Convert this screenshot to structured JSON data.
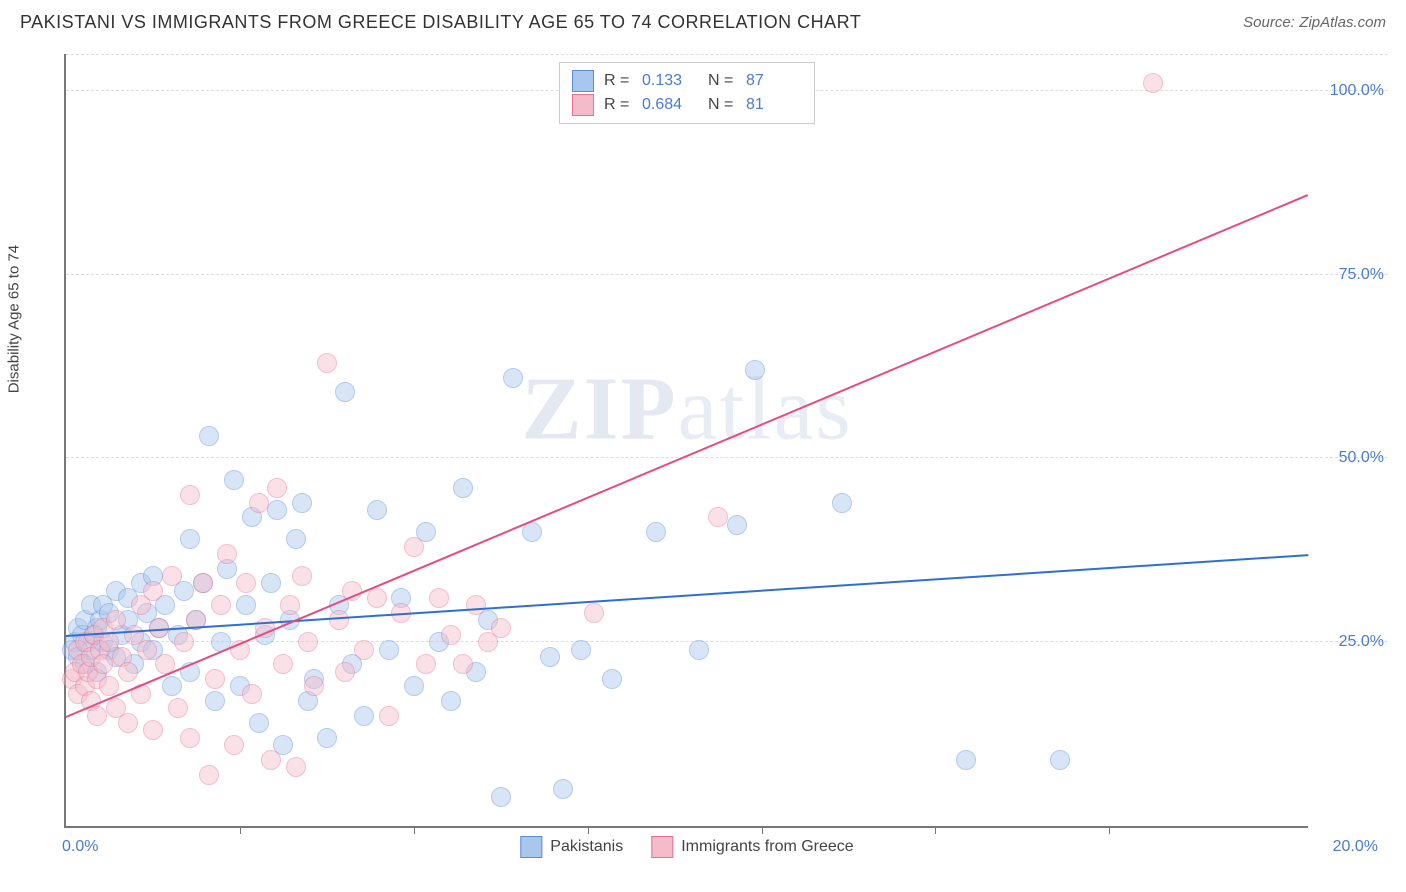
{
  "title": "PAKISTANI VS IMMIGRANTS FROM GREECE DISABILITY AGE 65 TO 74 CORRELATION CHART",
  "source_label": "Source:",
  "source_value": "ZipAtlas.com",
  "y_axis_label": "Disability Age 65 to 74",
  "watermark_a": "ZIP",
  "watermark_b": "atlas",
  "chart": {
    "type": "scatter-with-regression",
    "xlim": [
      0,
      20
    ],
    "ylim": [
      0,
      105
    ],
    "x_ticks": [
      0,
      20
    ],
    "x_tick_labels": [
      "0.0%",
      "20.0%"
    ],
    "x_minor_tick_positions": [
      2.8,
      5.6,
      8.4,
      11.2,
      14.0,
      16.8
    ],
    "y_ticks": [
      25,
      50,
      75,
      100
    ],
    "y_tick_labels": [
      "25.0%",
      "50.0%",
      "75.0%",
      "100.0%"
    ],
    "background_color": "#ffffff",
    "grid_color": "#dddddd",
    "axis_color": "#777777",
    "tick_label_color": "#4a7bd0",
    "marker_radius": 10,
    "marker_opacity": 0.45,
    "series": [
      {
        "name": "Pakistanis",
        "color_fill": "#a9c6ed",
        "color_stroke": "#5b8dd6",
        "legend_label": "Pakistanis",
        "R": "0.133",
        "N": "87",
        "regression": {
          "x1": 0,
          "y1": 26,
          "x2": 20,
          "y2": 37,
          "color": "#2f6fd0",
          "width": 2
        },
        "points": [
          [
            0.1,
            24
          ],
          [
            0.15,
            25
          ],
          [
            0.2,
            27
          ],
          [
            0.2,
            23
          ],
          [
            0.25,
            26
          ],
          [
            0.3,
            28
          ],
          [
            0.3,
            22
          ],
          [
            0.35,
            25
          ],
          [
            0.4,
            30
          ],
          [
            0.4,
            24
          ],
          [
            0.45,
            26
          ],
          [
            0.5,
            27
          ],
          [
            0.5,
            21
          ],
          [
            0.55,
            28
          ],
          [
            0.6,
            25
          ],
          [
            0.6,
            30
          ],
          [
            0.7,
            24
          ],
          [
            0.7,
            29
          ],
          [
            0.8,
            32
          ],
          [
            0.8,
            23
          ],
          [
            0.9,
            26
          ],
          [
            1.0,
            31
          ],
          [
            1.0,
            28
          ],
          [
            1.1,
            22
          ],
          [
            1.2,
            33
          ],
          [
            1.2,
            25
          ],
          [
            1.3,
            29
          ],
          [
            1.4,
            34
          ],
          [
            1.4,
            24
          ],
          [
            1.5,
            27
          ],
          [
            1.6,
            30
          ],
          [
            1.7,
            19
          ],
          [
            1.8,
            26
          ],
          [
            1.9,
            32
          ],
          [
            2.0,
            39
          ],
          [
            2.0,
            21
          ],
          [
            2.1,
            28
          ],
          [
            2.2,
            33
          ],
          [
            2.3,
            53
          ],
          [
            2.4,
            17
          ],
          [
            2.5,
            25
          ],
          [
            2.6,
            35
          ],
          [
            2.7,
            47
          ],
          [
            2.8,
            19
          ],
          [
            2.9,
            30
          ],
          [
            3.0,
            42
          ],
          [
            3.1,
            14
          ],
          [
            3.2,
            26
          ],
          [
            3.3,
            33
          ],
          [
            3.4,
            43
          ],
          [
            3.5,
            11
          ],
          [
            3.6,
            28
          ],
          [
            3.7,
            39
          ],
          [
            3.8,
            44
          ],
          [
            3.9,
            17
          ],
          [
            4.0,
            20
          ],
          [
            4.2,
            12
          ],
          [
            4.4,
            30
          ],
          [
            4.5,
            59
          ],
          [
            4.6,
            22
          ],
          [
            4.8,
            15
          ],
          [
            5.0,
            43
          ],
          [
            5.2,
            24
          ],
          [
            5.4,
            31
          ],
          [
            5.6,
            19
          ],
          [
            5.8,
            40
          ],
          [
            6.0,
            25
          ],
          [
            6.2,
            17
          ],
          [
            6.4,
            46
          ],
          [
            6.6,
            21
          ],
          [
            6.8,
            28
          ],
          [
            7.0,
            4
          ],
          [
            7.2,
            61
          ],
          [
            7.5,
            40
          ],
          [
            7.8,
            23
          ],
          [
            8.0,
            5
          ],
          [
            8.3,
            24
          ],
          [
            8.8,
            20
          ],
          [
            9.5,
            40
          ],
          [
            10.2,
            24
          ],
          [
            10.8,
            41
          ],
          [
            11.1,
            62
          ],
          [
            12.5,
            44
          ],
          [
            14.5,
            9
          ],
          [
            16.0,
            9
          ]
        ]
      },
      {
        "name": "Immigrants from Greece",
        "color_fill": "#f4bccb",
        "color_stroke": "#e77095",
        "legend_label": "Immigrants from Greece",
        "R": "0.684",
        "N": "81",
        "regression": {
          "x1": 0,
          "y1": 15,
          "x2": 20,
          "y2": 86,
          "color": "#e94a7d",
          "width": 2
        },
        "points": [
          [
            0.1,
            20
          ],
          [
            0.15,
            21
          ],
          [
            0.2,
            18
          ],
          [
            0.2,
            24
          ],
          [
            0.25,
            22
          ],
          [
            0.3,
            19
          ],
          [
            0.3,
            25
          ],
          [
            0.35,
            21
          ],
          [
            0.4,
            17
          ],
          [
            0.4,
            23
          ],
          [
            0.45,
            26
          ],
          [
            0.5,
            20
          ],
          [
            0.5,
            15
          ],
          [
            0.55,
            24
          ],
          [
            0.6,
            22
          ],
          [
            0.6,
            27
          ],
          [
            0.7,
            19
          ],
          [
            0.7,
            25
          ],
          [
            0.8,
            28
          ],
          [
            0.8,
            16
          ],
          [
            0.9,
            23
          ],
          [
            1.0,
            21
          ],
          [
            1.0,
            14
          ],
          [
            1.1,
            26
          ],
          [
            1.2,
            30
          ],
          [
            1.2,
            18
          ],
          [
            1.3,
            24
          ],
          [
            1.4,
            32
          ],
          [
            1.4,
            13
          ],
          [
            1.5,
            27
          ],
          [
            1.6,
            22
          ],
          [
            1.7,
            34
          ],
          [
            1.8,
            16
          ],
          [
            1.9,
            25
          ],
          [
            2.0,
            45
          ],
          [
            2.0,
            12
          ],
          [
            2.1,
            28
          ],
          [
            2.2,
            33
          ],
          [
            2.3,
            7
          ],
          [
            2.4,
            20
          ],
          [
            2.5,
            30
          ],
          [
            2.6,
            37
          ],
          [
            2.7,
            11
          ],
          [
            2.8,
            24
          ],
          [
            2.9,
            33
          ],
          [
            3.0,
            18
          ],
          [
            3.1,
            44
          ],
          [
            3.2,
            27
          ],
          [
            3.3,
            9
          ],
          [
            3.4,
            46
          ],
          [
            3.5,
            22
          ],
          [
            3.6,
            30
          ],
          [
            3.7,
            8
          ],
          [
            3.8,
            34
          ],
          [
            3.9,
            25
          ],
          [
            4.0,
            19
          ],
          [
            4.2,
            63
          ],
          [
            4.4,
            28
          ],
          [
            4.5,
            21
          ],
          [
            4.6,
            32
          ],
          [
            4.8,
            24
          ],
          [
            5.0,
            31
          ],
          [
            5.2,
            15
          ],
          [
            5.4,
            29
          ],
          [
            5.6,
            38
          ],
          [
            5.8,
            22
          ],
          [
            6.0,
            31
          ],
          [
            6.2,
            26
          ],
          [
            6.4,
            22
          ],
          [
            6.6,
            30
          ],
          [
            6.8,
            25
          ],
          [
            7.0,
            27
          ],
          [
            8.5,
            29
          ],
          [
            10.5,
            42
          ],
          [
            17.5,
            101
          ]
        ]
      }
    ]
  },
  "stats_box": {
    "r_label": "R  =",
    "n_label": "N  ="
  }
}
